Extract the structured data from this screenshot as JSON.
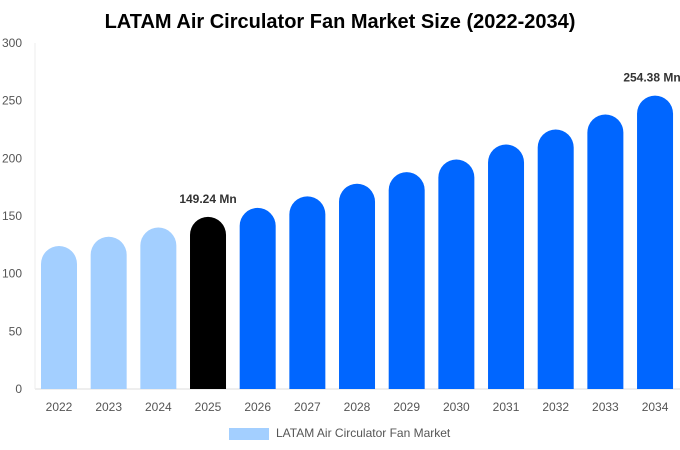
{
  "chart_data": {
    "type": "bar",
    "title": "LATAM Air Circulator Fan Market Size (2022-2034)",
    "categories": [
      "2022",
      "2023",
      "2024",
      "2025",
      "2026",
      "2027",
      "2028",
      "2029",
      "2030",
      "2031",
      "2032",
      "2033",
      "2034"
    ],
    "series": [
      {
        "name": "LATAM Air Circulator Fan Market",
        "values": [
          124,
          132,
          140,
          149.24,
          157,
          167,
          178,
          188,
          199,
          212,
          225,
          238,
          254.38
        ]
      }
    ],
    "bar_colors": [
      "#a3cfff",
      "#a3cfff",
      "#a3cfff",
      "#000000",
      "#0066ff",
      "#0066ff",
      "#0066ff",
      "#0066ff",
      "#0066ff",
      "#0066ff",
      "#0066ff",
      "#0066ff",
      "#0066ff"
    ],
    "data_labels": [
      {
        "category": "2025",
        "text": "149.24 Mn"
      },
      {
        "category": "2034",
        "text": "254.38 Mn"
      }
    ],
    "yticks": [
      "0",
      "50",
      "100",
      "150",
      "200",
      "250",
      "300"
    ],
    "ylim": [
      0,
      300
    ],
    "xlabel": "",
    "ylabel": "",
    "grid": false,
    "legend_position": "bottom",
    "legend_color": "#a3cfff"
  }
}
